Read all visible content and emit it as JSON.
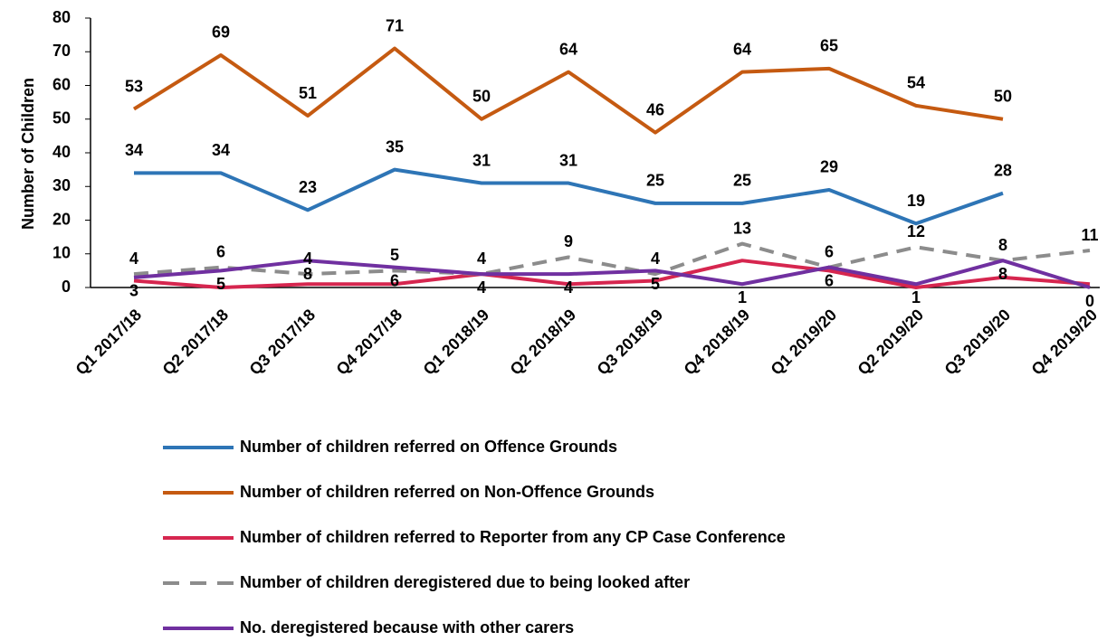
{
  "chart_data": {
    "type": "line",
    "y_label": "Number of Children",
    "categories": [
      "Q1 2017/18",
      "Q2 2017/18",
      "Q3 2017/18",
      "Q4 2017/18",
      "Q1 2018/19",
      "Q2 2018/19",
      "Q3 2018/19",
      "Q4 2018/19",
      "Q1 2019/20",
      "Q2 2019/20",
      "Q3 2019/20",
      "Q4 2019/20"
    ],
    "series": [
      {
        "name": "Number of children referred on Offence Grounds",
        "color": "#2e75b6",
        "dash": false,
        "data_labels": true,
        "values": [
          34,
          34,
          23,
          35,
          31,
          31,
          25,
          25,
          29,
          19,
          28,
          null
        ]
      },
      {
        "name": "Number of children referred on Non-Offence Grounds",
        "color": "#c55a11",
        "dash": false,
        "data_labels": true,
        "values": [
          53,
          69,
          51,
          71,
          50,
          64,
          46,
          64,
          65,
          54,
          50,
          null
        ]
      },
      {
        "name": "Number of children referred to Reporter from any CP Case Conference",
        "color": "#d6264f",
        "dash": false,
        "data_labels": false,
        "values": [
          2,
          0,
          1,
          1,
          4,
          1,
          2,
          8,
          5,
          0,
          3,
          1
        ]
      },
      {
        "name": "Number of children deregistered due to being looked after",
        "color": "#8c8c8c",
        "dash": true,
        "data_labels": true,
        "values": [
          4,
          6,
          4,
          5,
          4,
          9,
          4,
          13,
          6,
          12,
          8,
          11
        ]
      },
      {
        "name": "No. deregistered because with other carers",
        "color": "#7030a0",
        "dash": false,
        "data_labels": true,
        "values": [
          3,
          5,
          8,
          6,
          4,
          4,
          5,
          1,
          6,
          1,
          8,
          0
        ]
      }
    ],
    "ylim": [
      0,
      80
    ],
    "yticks": [
      0,
      10,
      20,
      30,
      40,
      50,
      60,
      70,
      80
    ],
    "grid": false
  }
}
